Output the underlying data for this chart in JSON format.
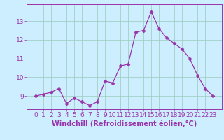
{
  "hours": [
    0,
    1,
    2,
    3,
    4,
    5,
    6,
    7,
    8,
    9,
    10,
    11,
    12,
    13,
    14,
    15,
    16,
    17,
    18,
    19,
    20,
    21,
    22,
    23
  ],
  "values": [
    9.0,
    9.1,
    9.2,
    9.4,
    8.6,
    8.9,
    8.7,
    8.5,
    8.7,
    9.8,
    9.7,
    10.6,
    10.7,
    12.4,
    12.5,
    13.5,
    12.6,
    12.1,
    11.8,
    11.5,
    11.0,
    10.1,
    9.4,
    9.0
  ],
  "line_color": "#9933aa",
  "marker": "D",
  "marker_size": 2.5,
  "bg_color": "#cceeff",
  "grid_color": "#99ccbb",
  "xlabel": "Windchill (Refroidissement éolien,°C)",
  "tick_color": "#9933aa",
  "ylim": [
    8.3,
    13.9
  ],
  "yticks": [
    9,
    10,
    11,
    12,
    13
  ],
  "xticks": [
    0,
    1,
    2,
    3,
    4,
    5,
    6,
    7,
    8,
    9,
    10,
    11,
    12,
    13,
    14,
    15,
    16,
    17,
    18,
    19,
    20,
    21,
    22,
    23
  ],
  "tick_fontsize": 6.5,
  "label_fontsize": 7
}
